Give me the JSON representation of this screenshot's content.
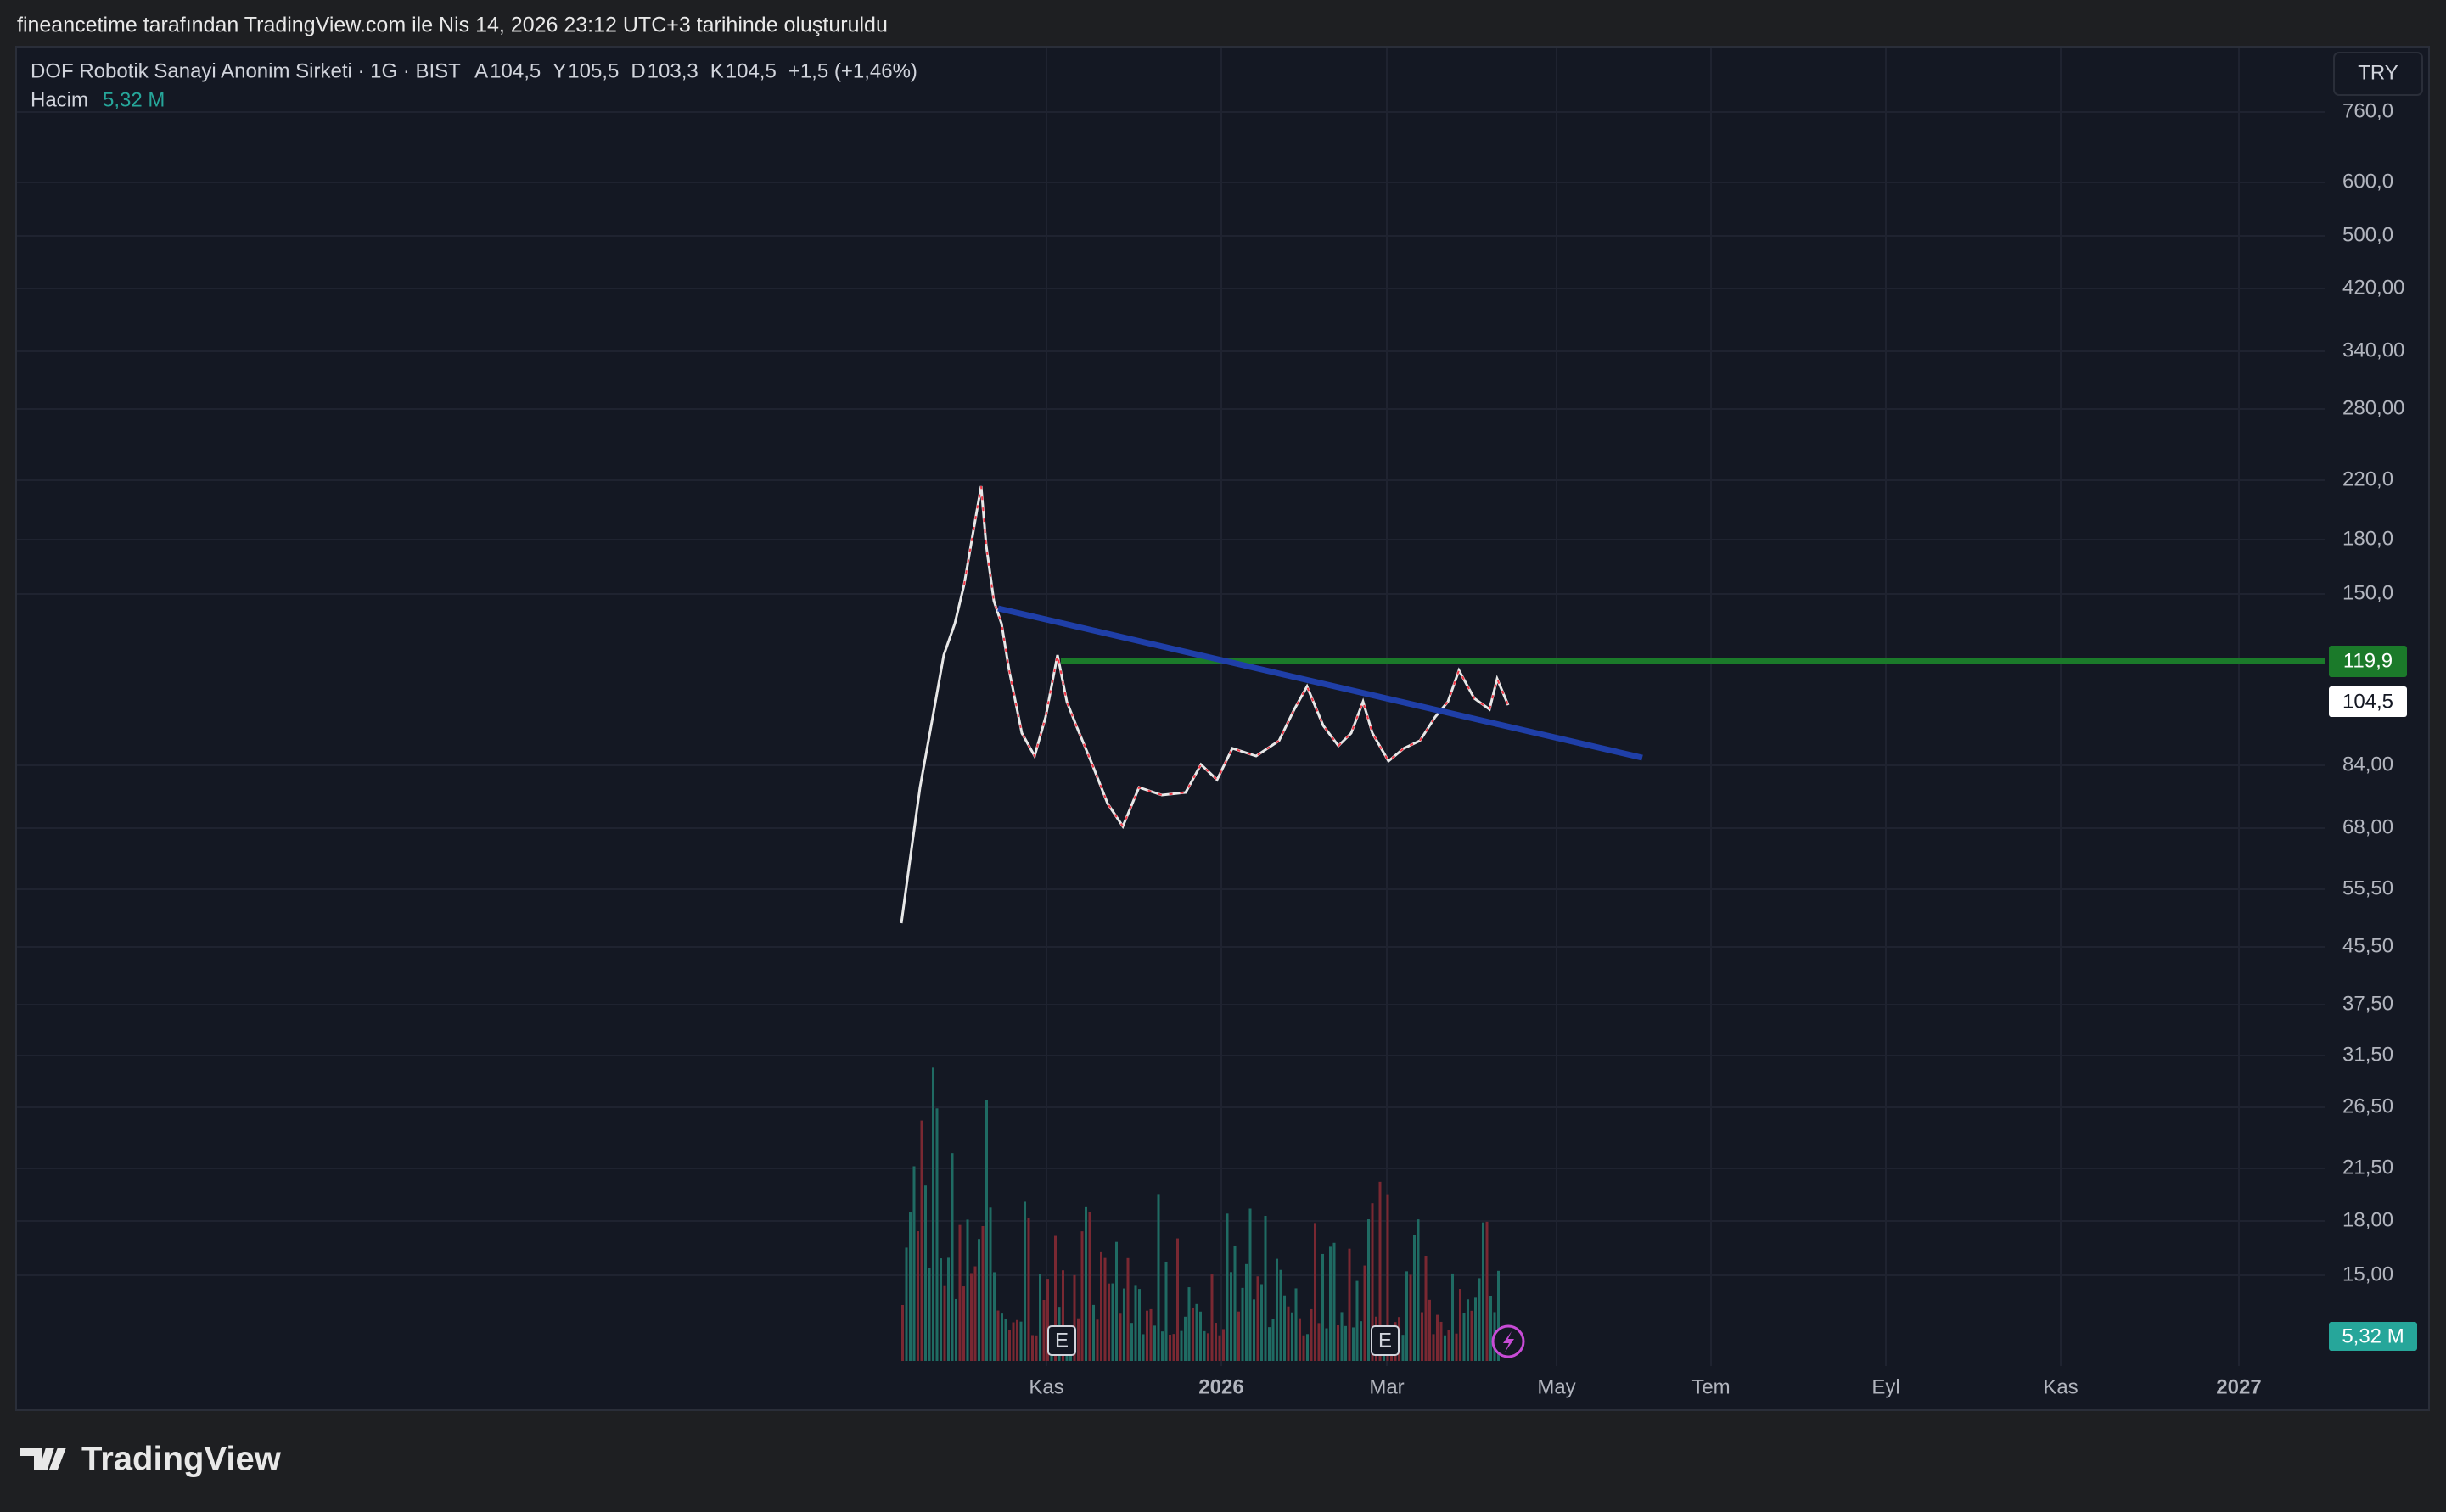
{
  "header": {
    "caption": "fineancetime tarafından TradingView.com ile Nis 14, 2026 23:12 UTC+3 tarihinde oluşturuldu"
  },
  "legend": {
    "symbol": "DOF Robotik Sanayi Anonim Sirketi · 1G · BIST",
    "ohlc": [
      {
        "key": "A",
        "value": "104,5"
      },
      {
        "key": "Y",
        "value": "105,5"
      },
      {
        "key": "D",
        "value": "103,3"
      },
      {
        "key": "K",
        "value": "104,5"
      }
    ],
    "change": "+1,5 (+1,46%)",
    "volume_name": "Hacim",
    "volume_value": "5,32 M"
  },
  "currency_button": "TRY",
  "price_axis": [
    "760,0",
    "600,0",
    "500,0",
    "420,00",
    "340,00",
    "280,00",
    "220,0",
    "180,0",
    "150,0",
    "84,00",
    "68,00",
    "55,50",
    "45,50",
    "37,50",
    "31,50",
    "26,50",
    "21,50",
    "18,00",
    "15,00"
  ],
  "price_labels": {
    "resistance": "119,9",
    "last": "104,5",
    "volume": "5,32 M"
  },
  "time_axis": [
    "Kas",
    "2026",
    "Mar",
    "May",
    "Tem",
    "Eyl",
    "Kas",
    "2027"
  ],
  "event_markers": [
    "E",
    "E"
  ],
  "footer": {
    "brand": "TradingView"
  }
}
